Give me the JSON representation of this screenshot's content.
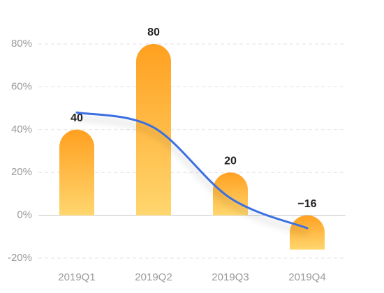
{
  "chart_data": {
    "type": "bar",
    "categories": [
      "2019Q1",
      "2019Q2",
      "2019Q3",
      "2019Q4"
    ],
    "series": [
      {
        "type": "bar",
        "color": "#ffa424",
        "values": [
          40,
          80,
          20,
          -16
        ],
        "value_labels": [
          "40",
          "80",
          "20",
          "−16"
        ]
      },
      {
        "type": "line",
        "color": "#3a6fe2",
        "values": [
          48,
          41,
          8,
          -6
        ]
      }
    ],
    "ylim": [
      -20,
      80
    ],
    "yticks": [
      {
        "value": -20,
        "label": "-20%"
      },
      {
        "value": 0,
        "label": "0%"
      },
      {
        "value": 20,
        "label": "20%"
      },
      {
        "value": 40,
        "label": "40%"
      },
      {
        "value": 60,
        "label": "60%"
      },
      {
        "value": 80,
        "label": "80%"
      }
    ],
    "grid": true
  }
}
